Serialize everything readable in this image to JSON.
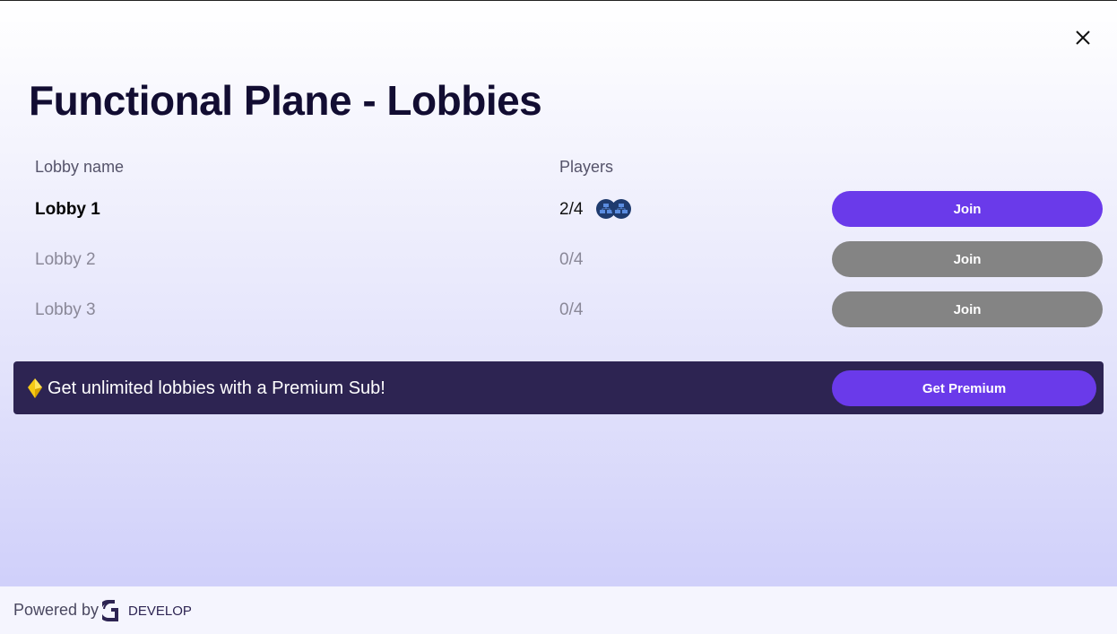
{
  "title": "Functional Plane - Lobbies",
  "columns": {
    "name": "Lobby name",
    "players": "Players"
  },
  "lobbies": [
    {
      "name": "Lobby 1",
      "players": "2/4",
      "join_label": "Join",
      "active": true
    },
    {
      "name": "Lobby 2",
      "players": "0/4",
      "join_label": "Join",
      "active": false
    },
    {
      "name": "Lobby 3",
      "players": "0/4",
      "join_label": "Join",
      "active": false
    }
  ],
  "banner": {
    "text": "Get unlimited lobbies with a Premium Sub!",
    "button": "Get Premium",
    "icon": "gem-icon"
  },
  "footer": {
    "powered_by": "Powered by",
    "logo_text": "DEVELOP"
  },
  "colors": {
    "accent": "#6a3aea",
    "disabled": "#848484",
    "banner_bg": "#2d2452",
    "title": "#120d32"
  }
}
